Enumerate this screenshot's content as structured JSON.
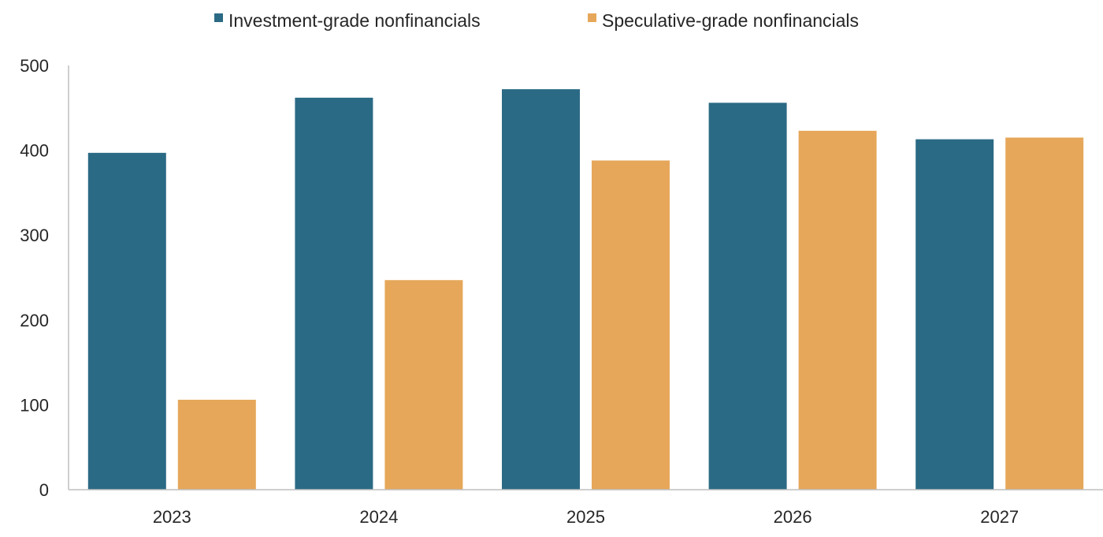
{
  "chart_data": {
    "type": "bar",
    "categories": [
      "2023",
      "2024",
      "2025",
      "2026",
      "2027"
    ],
    "series": [
      {
        "name": "Investment-grade nonfinancials",
        "color": "#2b6a85",
        "values": [
          397,
          462,
          472,
          456,
          413
        ]
      },
      {
        "name": "Speculative-grade nonfinancials",
        "color": "#e6a75a",
        "values": [
          106,
          247,
          388,
          423,
          415
        ]
      }
    ],
    "ylim": [
      0,
      500
    ],
    "yticks": [
      "0",
      "100",
      "200",
      "300",
      "400",
      "500"
    ],
    "grid": false,
    "legend_position": "top-center",
    "title": "",
    "xlabel": "",
    "ylabel": ""
  }
}
